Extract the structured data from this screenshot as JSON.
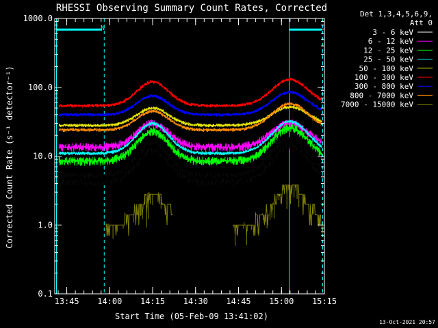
{
  "chart_data": {
    "type": "line",
    "title": "RHESSI Observing Summary Count Rates, Corrected",
    "xlabel": "Start Time (05-Feb-09 13:41:02)",
    "ylabel": "Corrected Count Rate (s⁻¹ detector⁻¹)",
    "yscale": "log",
    "ylim": [
      0.1,
      1000
    ],
    "xlim_minutes": [
      13.68,
      15.25
    ],
    "x_ticks": [
      "13:45",
      "14:00",
      "14:15",
      "14:30",
      "14:45",
      "15:00",
      "15:15"
    ],
    "y_ticks": [
      "0.1",
      "1.0",
      "10.0",
      "100.0",
      "1000.0"
    ],
    "legend_header": [
      "Det 1,3,4,5,6,9,",
      "Att 0"
    ],
    "legend_placement": "right, outside plot",
    "timestamp": "13-Oct-2021 20:57",
    "night_label": "N",
    "grid": false,
    "series": [
      {
        "name": "3 - 6 keV",
        "color": "#000000",
        "base": 4.7,
        "peak1": 14,
        "peak2": 16
      },
      {
        "name": "6 - 12 keV",
        "color": "#ff00ff",
        "base": 13.5,
        "peak1": 30,
        "peak2": 30
      },
      {
        "name": "12 - 25 keV",
        "color": "#00ff00",
        "base": 8.5,
        "peak1": 23,
        "peak2": 26
      },
      {
        "name": "25 - 50 keV",
        "color": "#00ffff",
        "base": 11,
        "peak1": 30,
        "peak2": 32
      },
      {
        "name": "50 - 100 keV",
        "color": "#e6e600",
        "base": 28,
        "peak1": 50,
        "peak2": 52
      },
      {
        "name": "100 - 300 keV",
        "color": "#ff0000",
        "base": 54,
        "peak1": 120,
        "peak2": 130
      },
      {
        "name": "300 - 800 keV",
        "color": "#0000ff",
        "base": 40,
        "peak1": 75,
        "peak2": 85
      },
      {
        "name": "800 - 7000 keV",
        "color": "#ff8c00",
        "base": 24,
        "peak1": 45,
        "peak2": 58
      },
      {
        "name": "7000 - 15000 keV",
        "color": "#808000",
        "base": 1,
        "peak1": 2.8,
        "peak2": 3.8
      }
    ],
    "markers": {
      "cyan_solid_times": [
        13.69,
        15.045
      ],
      "cyan_dashed_times": [
        13.968,
        15.24
      ],
      "night_bars": [
        [
          13.69,
          13.955
        ],
        [
          15.045,
          15.235
        ]
      ],
      "color": "#00ffff"
    }
  }
}
